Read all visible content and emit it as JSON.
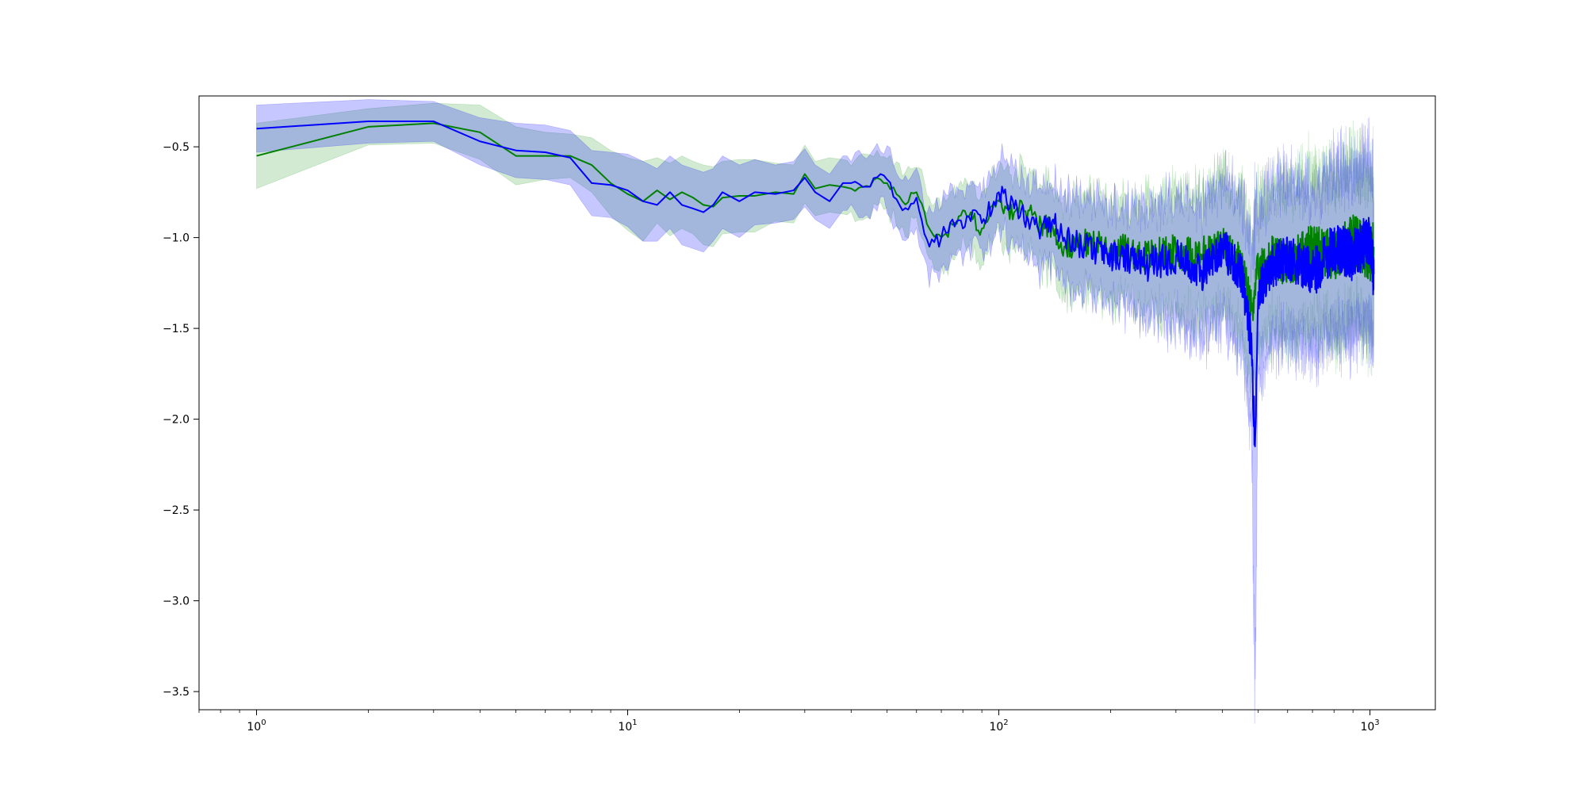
{
  "chart_data": {
    "type": "line",
    "title": "",
    "xlabel": "",
    "ylabel": "",
    "xscale": "log",
    "xlim": [
      0.7,
      1500
    ],
    "ylim": [
      -3.6,
      -0.22
    ],
    "grid": false,
    "legend": "none",
    "x_ticks": [
      {
        "base": "10",
        "exp": "0",
        "value": 1
      },
      {
        "base": "10",
        "exp": "1",
        "value": 10
      },
      {
        "base": "10",
        "exp": "2",
        "value": 100
      },
      {
        "base": "10",
        "exp": "3",
        "value": 1000
      }
    ],
    "y_ticks": [
      {
        "label": "−0.5",
        "value": -0.5
      },
      {
        "label": "−1.0",
        "value": -1.0
      },
      {
        "label": "−1.5",
        "value": -1.5
      },
      {
        "label": "−2.0",
        "value": -2.0
      },
      {
        "label": "−2.5",
        "value": -2.5
      },
      {
        "label": "−3.0",
        "value": -3.0
      },
      {
        "label": "−3.5",
        "value": -3.5
      }
    ],
    "series": [
      {
        "color": "#008000",
        "band_color": "#2ca02c",
        "x": [
          1,
          2,
          3,
          4,
          5,
          6,
          7,
          8,
          9,
          10,
          11,
          12,
          13,
          14,
          15,
          16,
          17,
          18,
          20,
          22,
          25,
          28,
          30,
          32,
          35,
          38,
          40,
          45,
          48,
          50,
          55,
          60,
          65,
          70,
          75,
          80,
          85,
          90,
          100,
          110,
          120,
          130,
          140,
          150,
          170,
          200,
          250,
          300,
          350,
          400,
          450,
          480,
          490,
          500,
          550,
          600,
          700,
          800,
          900,
          1000,
          1024
        ],
        "y": [
          -0.55,
          -0.39,
          -0.37,
          -0.42,
          -0.55,
          -0.55,
          -0.55,
          -0.6,
          -0.7,
          -0.76,
          -0.8,
          -0.74,
          -0.79,
          -0.75,
          -0.78,
          -0.82,
          -0.83,
          -0.78,
          -0.77,
          -0.77,
          -0.75,
          -0.76,
          -0.65,
          -0.73,
          -0.71,
          -0.72,
          -0.73,
          -0.72,
          -0.68,
          -0.7,
          -0.8,
          -0.75,
          -0.95,
          -1.0,
          -0.93,
          -0.85,
          -0.9,
          -0.95,
          -0.8,
          -0.86,
          -0.85,
          -0.92,
          -0.95,
          -1.05,
          -1.03,
          -1.05,
          -1.1,
          -1.08,
          -1.1,
          -1.05,
          -1.15,
          -1.4,
          -1.25,
          -1.2,
          -1.1,
          -1.15,
          -1.05,
          -1.1,
          -1.0,
          -1.1,
          -1.05
        ],
        "band_width": [
          0.18,
          0.1,
          0.11,
          0.15,
          0.16,
          0.13,
          0.12,
          0.15,
          0.18,
          0.2,
          0.22,
          0.18,
          0.2,
          0.2,
          0.2,
          0.22,
          0.22,
          0.2,
          0.2,
          0.2,
          0.16,
          0.16,
          0.16,
          0.15,
          0.15,
          0.15,
          0.15,
          0.15,
          0.15,
          0.15,
          0.16,
          0.16,
          0.17,
          0.17,
          0.17,
          0.17,
          0.18,
          0.18,
          0.18,
          0.2,
          0.2,
          0.22,
          0.22,
          0.24,
          0.25,
          0.26,
          0.3,
          0.32,
          0.34,
          0.35,
          0.38,
          0.4,
          0.42,
          0.38,
          0.38,
          0.4,
          0.42,
          0.42,
          0.42,
          0.42,
          0.42
        ]
      },
      {
        "color": "#0000ff",
        "band_color": "#0000ff",
        "x": [
          1,
          2,
          3,
          4,
          5,
          6,
          7,
          8,
          9,
          10,
          11,
          12,
          13,
          14,
          15,
          16,
          17,
          18,
          20,
          22,
          25,
          28,
          30,
          32,
          35,
          38,
          40,
          45,
          48,
          50,
          55,
          60,
          65,
          70,
          75,
          80,
          85,
          90,
          100,
          110,
          120,
          130,
          140,
          150,
          170,
          200,
          250,
          300,
          350,
          400,
          450,
          480,
          490,
          500,
          550,
          600,
          700,
          800,
          900,
          1000,
          1024
        ],
        "y": [
          -0.4,
          -0.36,
          -0.36,
          -0.47,
          -0.52,
          -0.53,
          -0.56,
          -0.7,
          -0.71,
          -0.74,
          -0.8,
          -0.82,
          -0.75,
          -0.82,
          -0.84,
          -0.86,
          -0.82,
          -0.75,
          -0.8,
          -0.75,
          -0.76,
          -0.74,
          -0.67,
          -0.75,
          -0.8,
          -0.7,
          -0.7,
          -0.72,
          -0.65,
          -0.68,
          -0.85,
          -0.78,
          -1.05,
          -1.0,
          -0.9,
          -0.95,
          -0.85,
          -0.92,
          -0.75,
          -0.84,
          -0.9,
          -0.95,
          -0.9,
          -1.0,
          -1.05,
          -1.1,
          -1.15,
          -1.1,
          -1.2,
          -1.05,
          -1.2,
          -1.6,
          -2.15,
          -1.3,
          -1.15,
          -1.1,
          -1.2,
          -1.05,
          -1.1,
          -1.0,
          -1.2
        ],
        "band_width": [
          0.13,
          0.12,
          0.11,
          0.13,
          0.15,
          0.15,
          0.15,
          0.18,
          0.18,
          0.2,
          0.22,
          0.2,
          0.2,
          0.22,
          0.22,
          0.22,
          0.2,
          0.2,
          0.2,
          0.18,
          0.16,
          0.16,
          0.16,
          0.15,
          0.15,
          0.15,
          0.15,
          0.15,
          0.15,
          0.15,
          0.17,
          0.17,
          0.18,
          0.18,
          0.18,
          0.18,
          0.18,
          0.18,
          0.18,
          0.2,
          0.2,
          0.22,
          0.22,
          0.24,
          0.25,
          0.26,
          0.3,
          0.34,
          0.36,
          0.38,
          0.4,
          0.45,
          1.3,
          0.45,
          0.42,
          0.42,
          0.42,
          0.45,
          0.45,
          0.45,
          0.45
        ]
      }
    ]
  }
}
